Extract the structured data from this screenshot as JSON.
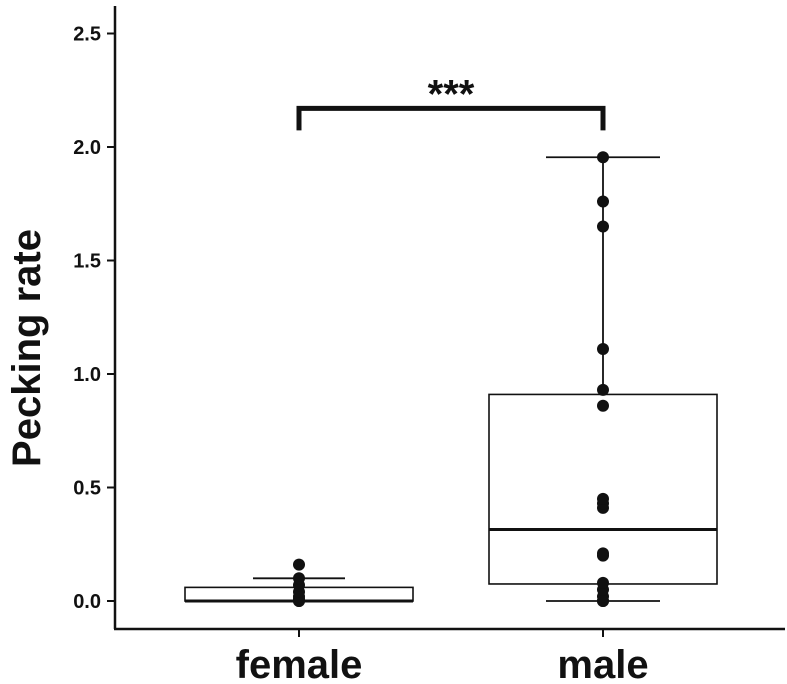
{
  "chart_data": {
    "type": "box",
    "title": "",
    "xlabel": "",
    "ylabel": "Pecking rate",
    "ylim": [
      -0.12,
      2.6
    ],
    "yticks": [
      "0.0",
      "0.5",
      "1.0",
      "1.5",
      "2.0",
      "2.5"
    ],
    "ytick_values": [
      0,
      0.5,
      1.0,
      1.5,
      2.0,
      2.5
    ],
    "grid": false,
    "categories": [
      "female",
      "male"
    ],
    "boxes": [
      {
        "name": "female",
        "whisker_low": 0.0,
        "q1": 0.0,
        "median": 0.0,
        "q3": 0.06,
        "whisker_high": 0.1
      },
      {
        "name": "male",
        "whisker_low": 0.0,
        "q1": 0.075,
        "median": 0.315,
        "q3": 0.91,
        "whisker_high": 1.955
      }
    ],
    "points": [
      {
        "category": "female",
        "values": [
          0.0,
          0.0,
          0.01,
          0.02,
          0.04,
          0.07,
          0.1,
          0.16
        ]
      },
      {
        "category": "male",
        "values": [
          0.0,
          0.0,
          0.02,
          0.05,
          0.08,
          0.2,
          0.21,
          0.41,
          0.43,
          0.45,
          0.86,
          0.93,
          1.11,
          1.65,
          1.76,
          1.955
        ]
      }
    ],
    "significance": {
      "between": [
        "female",
        "male"
      ],
      "label": "***",
      "y": 2.17
    }
  }
}
